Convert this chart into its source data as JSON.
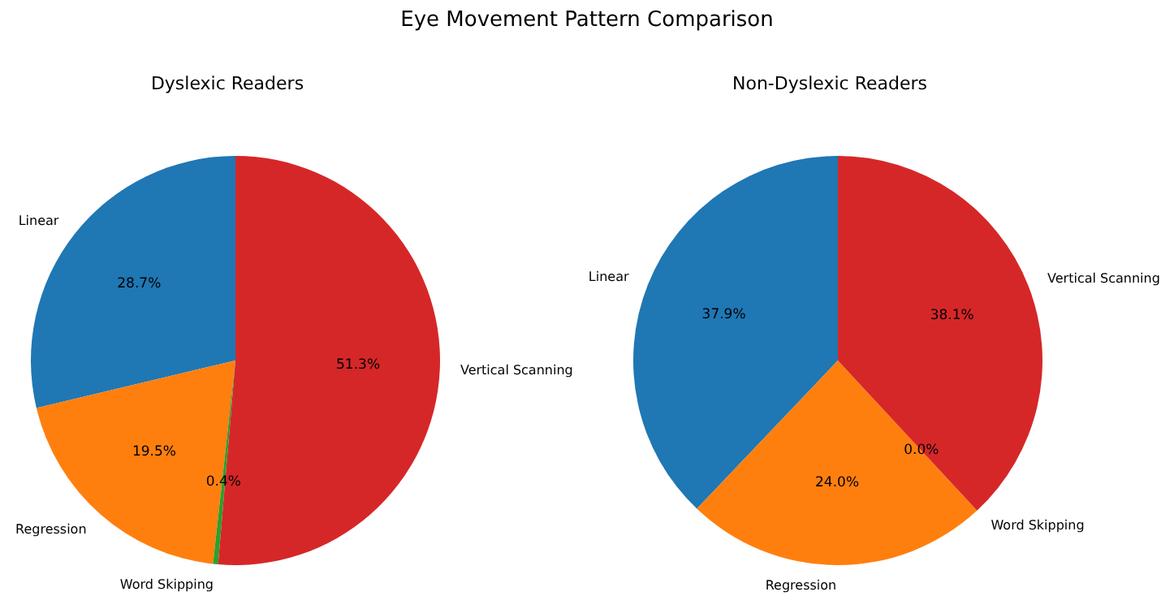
{
  "chart_data": [
    {
      "type": "pie",
      "title": "Dyslexic Readers",
      "annotations": [
        "Eye Movement Pattern Comparison"
      ],
      "categories": [
        "Linear",
        "Regression",
        "Word Skipping",
        "Vertical Scanning"
      ],
      "values": [
        28.7,
        19.5,
        0.4,
        51.3
      ],
      "value_labels": [
        "28.7%",
        "19.5%",
        "0.4%",
        "51.3%"
      ],
      "colors": [
        "#1f77b4",
        "#ff7f0e",
        "#2ca02c",
        "#d62728"
      ],
      "legend": false
    },
    {
      "type": "pie",
      "title": "Non-Dyslexic Readers",
      "categories": [
        "Linear",
        "Regression",
        "Word Skipping",
        "Vertical Scanning"
      ],
      "values": [
        37.9,
        24.0,
        0.0,
        38.1
      ],
      "value_labels": [
        "37.9%",
        "24.0%",
        "0.0%",
        "38.1%"
      ],
      "colors": [
        "#1f77b4",
        "#ff7f0e",
        "#2ca02c",
        "#d62728"
      ],
      "legend": false
    }
  ]
}
